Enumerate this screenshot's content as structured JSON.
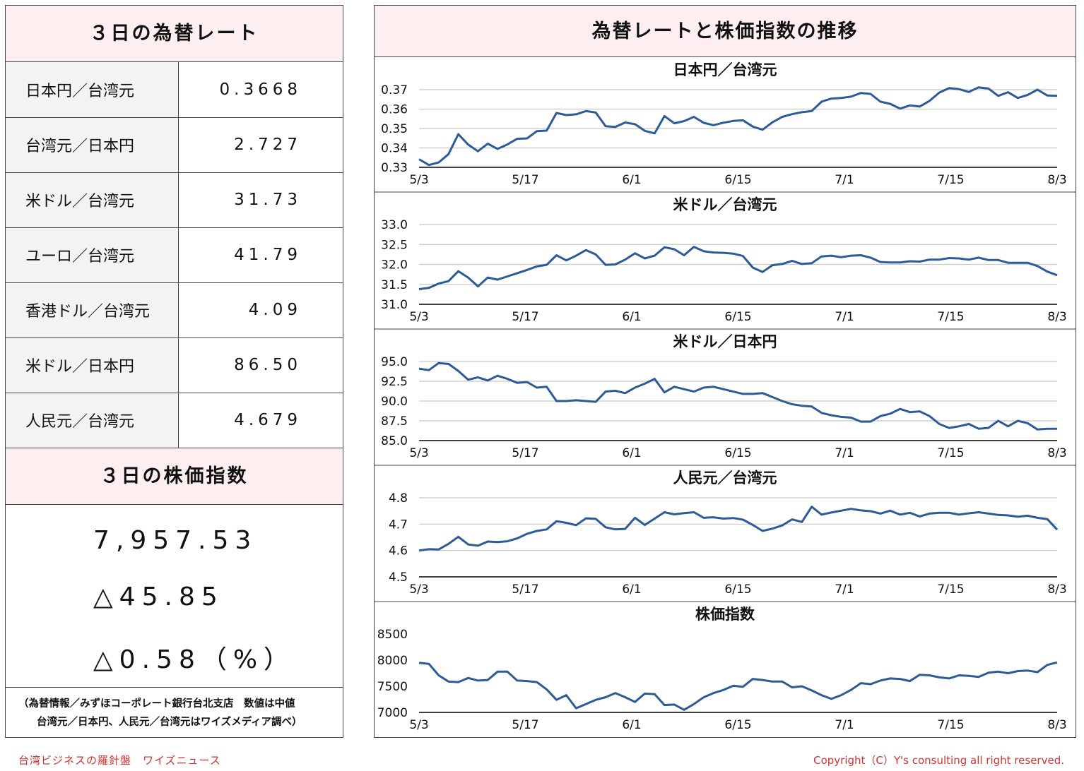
{
  "rates": {
    "title": "３日の為替レート",
    "items": [
      {
        "label": "日本円／台湾元",
        "value": "0.3668"
      },
      {
        "label": "台湾元／日本円",
        "value": "2.727"
      },
      {
        "label": "米ドル／台湾元",
        "value": "31.73"
      },
      {
        "label": "ユーロ／台湾元",
        "value": "41.79"
      },
      {
        "label": "香港ドル／台湾元",
        "value": "4.09"
      },
      {
        "label": "米ドル／日本円",
        "value": "86.50"
      },
      {
        "label": "人民元／台湾元",
        "value": "4.679"
      }
    ]
  },
  "stock": {
    "title": "３日の株価指数",
    "index": "7,957.53",
    "change": "△45.85",
    "change_pct": "△0.58（%）"
  },
  "source": {
    "line1": "（為替情報／みずほコーポレート銀行台北支店　数値は中値",
    "line2": "台湾元／日本円、人民元／台湾元はワイズメディア調べ）"
  },
  "charts_panel": {
    "title": "為替レートと株価指数の推移"
  },
  "footer": {
    "left": "台湾ビジネスの羅針盤　ワイズニュース",
    "right": "Copyright（C）Y's consulting all right reserved."
  },
  "colors": {
    "line": "#2c5b95",
    "grid": "#c8c8c8",
    "axis": "#000000",
    "header_bg": "#fdeff0",
    "label_bg": "#f3f3f3",
    "footer": "#cc3333"
  },
  "chart_data": [
    {
      "type": "line",
      "title": "日本円／台湾元",
      "x_tick_labels": [
        "5/3",
        "5/17",
        "6/1",
        "6/15",
        "7/1",
        "7/15",
        "8/3"
      ],
      "y_ticks": [
        "0.33",
        "0.34",
        "0.35",
        "0.36",
        "0.37"
      ],
      "ylim": [
        0.33,
        0.37
      ],
      "grid": true,
      "values": [
        0.3342,
        0.3312,
        0.3325,
        0.3368,
        0.3471,
        0.3417,
        0.3383,
        0.3422,
        0.3395,
        0.3418,
        0.3447,
        0.3449,
        0.3486,
        0.3489,
        0.358,
        0.3569,
        0.3573,
        0.359,
        0.3582,
        0.3512,
        0.3508,
        0.3531,
        0.3522,
        0.3488,
        0.3475,
        0.3564,
        0.3527,
        0.3538,
        0.356,
        0.3529,
        0.3517,
        0.353,
        0.3539,
        0.3542,
        0.351,
        0.3494,
        0.3532,
        0.356,
        0.3574,
        0.3584,
        0.359,
        0.3638,
        0.3654,
        0.3657,
        0.3664,
        0.3683,
        0.3678,
        0.3638,
        0.3627,
        0.3602,
        0.3619,
        0.3613,
        0.3642,
        0.3685,
        0.3708,
        0.3703,
        0.3688,
        0.3712,
        0.3706,
        0.3668,
        0.3687,
        0.3657,
        0.3673,
        0.37,
        0.367,
        0.3668
      ]
    },
    {
      "type": "line",
      "title": "米ドル／台湾元",
      "x_tick_labels": [
        "5/3",
        "5/17",
        "6/1",
        "6/15",
        "7/1",
        "7/15",
        "8/3"
      ],
      "y_ticks": [
        "31.0",
        "31.5",
        "32.0",
        "32.5",
        "33.0"
      ],
      "ylim": [
        31.0,
        33.0
      ],
      "grid": true,
      "values": [
        31.38,
        31.41,
        31.52,
        31.58,
        31.83,
        31.67,
        31.45,
        31.67,
        31.62,
        31.7,
        31.78,
        31.86,
        31.95,
        31.99,
        32.23,
        32.1,
        32.22,
        32.36,
        32.25,
        31.99,
        32.0,
        32.12,
        32.28,
        32.15,
        32.22,
        32.43,
        32.38,
        32.23,
        32.44,
        32.33,
        32.3,
        32.29,
        32.27,
        32.21,
        31.92,
        31.81,
        31.98,
        32.01,
        32.09,
        32.01,
        32.03,
        32.2,
        32.22,
        32.18,
        32.22,
        32.23,
        32.17,
        32.06,
        32.05,
        32.05,
        32.08,
        32.07,
        32.12,
        32.12,
        32.16,
        32.15,
        32.12,
        32.17,
        32.11,
        32.11,
        32.04,
        32.04,
        32.04,
        31.96,
        31.82,
        31.73
      ]
    },
    {
      "type": "line",
      "title": "米ドル／日本円",
      "x_tick_labels": [
        "5/3",
        "5/17",
        "6/1",
        "6/15",
        "7/1",
        "7/15",
        "8/3"
      ],
      "y_ticks": [
        "85.0",
        "87.5",
        "90.0",
        "92.5",
        "95.0"
      ],
      "ylim": [
        85.0,
        95.0
      ],
      "grid": true,
      "values": [
        94.1,
        93.9,
        94.8,
        94.7,
        93.8,
        92.7,
        93.0,
        92.6,
        93.2,
        92.8,
        92.3,
        92.4,
        91.7,
        91.8,
        90.0,
        90.0,
        90.1,
        90.0,
        89.9,
        91.2,
        91.3,
        91.0,
        91.7,
        92.2,
        92.8,
        91.1,
        91.8,
        91.5,
        91.2,
        91.7,
        91.8,
        91.5,
        91.2,
        90.9,
        90.9,
        91.0,
        90.5,
        90.0,
        89.6,
        89.4,
        89.3,
        88.5,
        88.2,
        88.0,
        87.9,
        87.4,
        87.4,
        88.1,
        88.4,
        89.0,
        88.6,
        88.7,
        88.1,
        87.1,
        86.6,
        86.8,
        87.1,
        86.5,
        86.6,
        87.5,
        86.8,
        87.5,
        87.2,
        86.4,
        86.5,
        86.5
      ]
    },
    {
      "type": "line",
      "title": "人民元／台湾元",
      "x_tick_labels": [
        "5/3",
        "5/17",
        "6/1",
        "6/15",
        "7/1",
        "7/15",
        "8/3"
      ],
      "y_ticks": [
        "4.5",
        "4.6",
        "4.7",
        "4.8"
      ],
      "ylim": [
        4.5,
        4.8
      ],
      "grid": true,
      "values": [
        4.6,
        4.605,
        4.604,
        4.625,
        4.652,
        4.623,
        4.618,
        4.634,
        4.632,
        4.635,
        4.646,
        4.663,
        4.674,
        4.68,
        4.711,
        4.705,
        4.696,
        4.722,
        4.72,
        4.688,
        4.68,
        4.682,
        4.724,
        4.697,
        4.721,
        4.745,
        4.737,
        4.742,
        4.745,
        4.724,
        4.726,
        4.721,
        4.723,
        4.717,
        4.697,
        4.674,
        4.683,
        4.695,
        4.718,
        4.708,
        4.766,
        4.736,
        4.744,
        4.751,
        4.758,
        4.752,
        4.749,
        4.74,
        4.751,
        4.736,
        4.743,
        4.729,
        4.74,
        4.743,
        4.743,
        4.736,
        4.741,
        4.745,
        4.74,
        4.735,
        4.733,
        4.728,
        4.732,
        4.724,
        4.719,
        4.679
      ]
    },
    {
      "type": "line",
      "title": "株価指数",
      "x_tick_labels": [
        "5/3",
        "5/17",
        "6/1",
        "6/15",
        "7/1",
        "7/15",
        "8/3"
      ],
      "y_ticks": [
        "7000",
        "7500",
        "8000",
        "8500"
      ],
      "ylim": [
        7000,
        8500
      ],
      "grid": false,
      "values": [
        7950,
        7930,
        7710,
        7590,
        7580,
        7660,
        7610,
        7620,
        7780,
        7780,
        7610,
        7600,
        7580,
        7440,
        7240,
        7330,
        7080,
        7160,
        7240,
        7290,
        7370,
        7290,
        7200,
        7360,
        7350,
        7140,
        7150,
        7050,
        7160,
        7290,
        7370,
        7430,
        7510,
        7490,
        7640,
        7620,
        7590,
        7590,
        7480,
        7500,
        7420,
        7330,
        7260,
        7330,
        7430,
        7560,
        7540,
        7610,
        7650,
        7640,
        7600,
        7720,
        7710,
        7670,
        7650,
        7710,
        7700,
        7680,
        7760,
        7780,
        7750,
        7790,
        7800,
        7770,
        7910,
        7957
      ]
    }
  ]
}
